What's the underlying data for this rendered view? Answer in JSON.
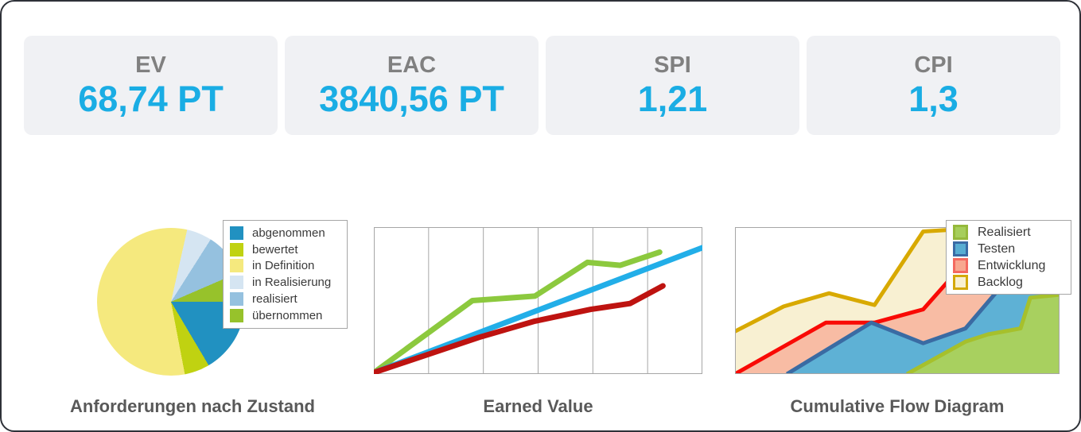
{
  "panel": {
    "background": "#ffffff",
    "border_color": "#2e3138"
  },
  "kpis": [
    {
      "label": "EV",
      "value": "68,74 PT"
    },
    {
      "label": "EAC",
      "value": "3840,56 PT"
    },
    {
      "label": "SPI",
      "value": "1,21"
    },
    {
      "label": "CPI",
      "value": "1,3"
    }
  ],
  "colors": {
    "kpi_card_bg": "#f0f1f4",
    "kpi_label": "#808080",
    "kpi_value": "#1aade4",
    "chart_title": "#595959",
    "plot_border": "#a6a6a6",
    "legend_border": "#a6a6a6"
  },
  "chart_data": [
    {
      "id": "requirements-by-state",
      "type": "pie",
      "title": "Anforderungen nach Zustand",
      "value_unit": "percent",
      "start": "east-clockwise",
      "legend_position": "right",
      "slices": [
        {
          "label": "abgenommen",
          "value": 16.5,
          "color": "#2191c1"
        },
        {
          "label": "bewertet",
          "value": 5.5,
          "color": "#c0d211"
        },
        {
          "label": "in Definition",
          "value": 56.5,
          "color": "#f5e97e"
        },
        {
          "label": "in Realisierung",
          "value": 5.5,
          "color": "#d5e5f2"
        },
        {
          "label": "realisiert",
          "value": 9.5,
          "color": "#95c1df"
        },
        {
          "label": "übernommen",
          "value": 6.5,
          "color": "#97c22b"
        }
      ]
    },
    {
      "id": "earned-value",
      "type": "line",
      "title": "Earned Value",
      "x_divisions": 6,
      "axis_tick_labels_visible": false,
      "coords": "percent of plot area, y measured up from bottom",
      "series": [
        {
          "name": "series-green",
          "color": "#8cc93e",
          "points": [
            [
              0,
              1
            ],
            [
              30,
              50
            ],
            [
              49,
              53
            ],
            [
              65,
              76
            ],
            [
              75,
              74
            ],
            [
              87,
              83
            ]
          ]
        },
        {
          "name": "series-blue",
          "color": "#22aee8",
          "points": [
            [
              0,
              1
            ],
            [
              100,
              86
            ]
          ]
        },
        {
          "name": "series-red",
          "color": "#be1310",
          "points": [
            [
              0,
              1
            ],
            [
              32,
              25
            ],
            [
              49,
              36
            ],
            [
              66,
              44
            ],
            [
              78,
              48
            ],
            [
              88,
              60
            ]
          ]
        }
      ]
    },
    {
      "id": "cumulative-flow",
      "type": "area",
      "title": "Cumulative Flow Diagram",
      "coords": "percent of plot area, y measured up from bottom; areas painted top layer first",
      "series": [
        {
          "name": "Backlog",
          "line": "#d8a900",
          "fill": "#f8f0d2",
          "points": [
            [
              0,
              29
            ],
            [
              15,
              46
            ],
            [
              29,
              55
            ],
            [
              43,
              47
            ],
            [
              58,
              97
            ],
            [
              65,
              98
            ],
            [
              100,
              99
            ]
          ]
        },
        {
          "name": "Entwicklung",
          "line": "#f90a05",
          "fill": "#f8bca4",
          "points": [
            [
              0,
              0
            ],
            [
              28,
              35
            ],
            [
              43,
              35
            ],
            [
              58,
              44
            ],
            [
              66,
              64
            ],
            [
              80,
              91
            ],
            [
              100,
              94
            ]
          ]
        },
        {
          "name": "Testen",
          "line": "#3a6ba3",
          "fill": "#5eb1d5",
          "points": [
            [
              16,
              0
            ],
            [
              42,
              35
            ],
            [
              58,
              21
            ],
            [
              71,
              31
            ],
            [
              88,
              75
            ],
            [
              100,
              78
            ]
          ]
        },
        {
          "name": "Realisiert",
          "line": "#a6c02c",
          "fill": "#a8d05f",
          "points": [
            [
              53,
              0
            ],
            [
              71,
              22
            ],
            [
              78,
              27
            ],
            [
              88,
              31
            ],
            [
              91,
              52
            ],
            [
              100,
              54
            ]
          ]
        }
      ],
      "legend": [
        {
          "label": "Realisiert",
          "fill": "#a6ce5b",
          "border": "#95b93b"
        },
        {
          "label": "Testen",
          "fill": "#58add2",
          "border": "#3a6ba5"
        },
        {
          "label": "Entwicklung",
          "fill": "#f8a78f",
          "border": "#f4695f"
        },
        {
          "label": "Backlog",
          "fill": "#f8f0d0",
          "border": "#d4a90a"
        }
      ]
    }
  ]
}
